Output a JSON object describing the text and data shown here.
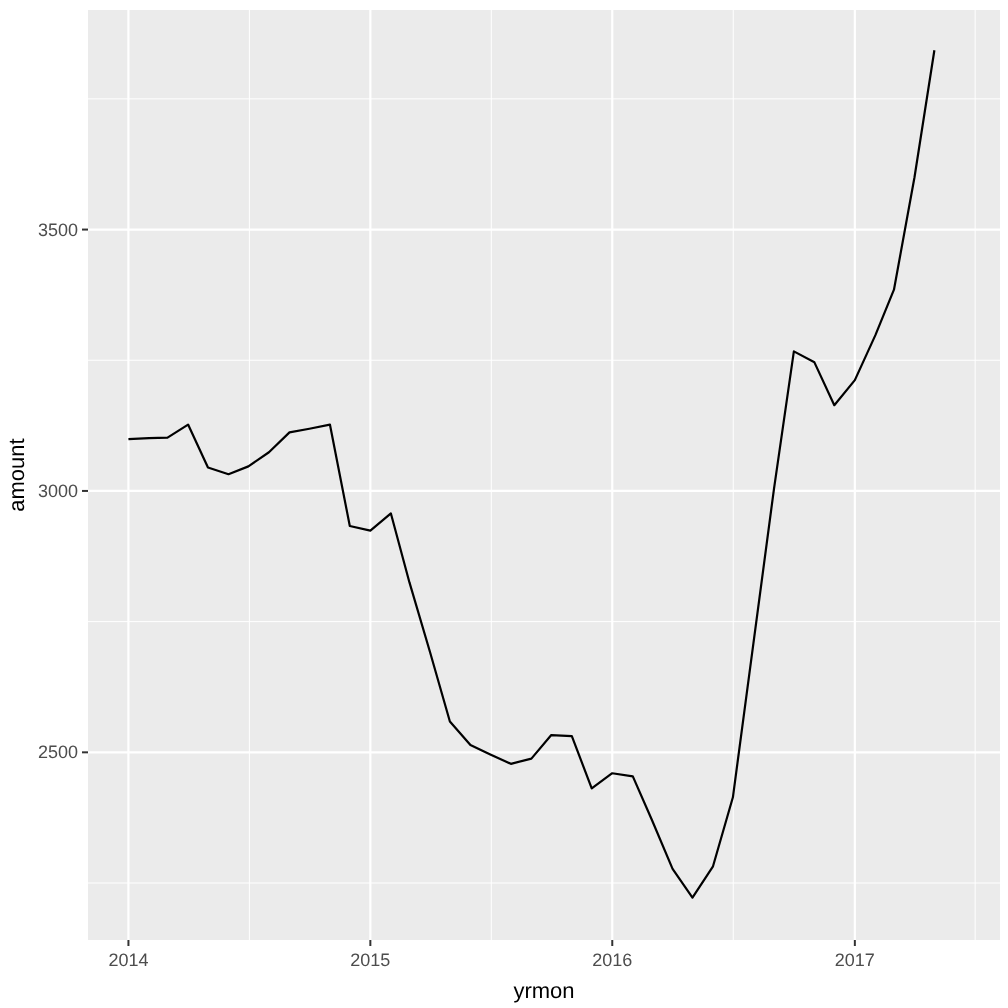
{
  "chart_data": {
    "type": "line",
    "xlabel": "yrmon",
    "ylabel": "amount",
    "x": [
      "2014-01",
      "2014-02",
      "2014-03",
      "2014-04",
      "2014-05",
      "2014-06",
      "2014-07",
      "2014-08",
      "2014-09",
      "2014-10",
      "2014-11",
      "2014-12",
      "2015-01",
      "2015-02",
      "2015-03",
      "2015-04",
      "2015-05",
      "2015-06",
      "2015-07",
      "2015-08",
      "2015-09",
      "2015-10",
      "2015-11",
      "2015-12",
      "2016-01",
      "2016-02",
      "2016-03",
      "2016-04",
      "2016-05",
      "2016-06",
      "2016-07",
      "2016-08",
      "2016-09",
      "2016-10",
      "2016-11",
      "2016-12",
      "2017-01",
      "2017-02",
      "2017-03",
      "2017-04",
      "2017-05"
    ],
    "series": [
      {
        "color": "#000000",
        "values": [
          3099,
          3101,
          3102,
          3127,
          3045,
          3032,
          3047,
          3074,
          3112,
          3119,
          3127,
          2933,
          2924,
          2957,
          2825,
          2692,
          2559,
          2514,
          2496,
          2478,
          2488,
          2533,
          2531,
          2431,
          2460,
          2454,
          2370,
          2277,
          2222,
          2282,
          2414,
          2709,
          3004,
          3267,
          3246,
          3164,
          3212,
          3298,
          3385,
          3600,
          3843
        ]
      }
    ],
    "xlim": [
      "2013-11-01",
      "2017-08-08"
    ],
    "xticks": [
      "2014",
      "2015",
      "2016",
      "2017"
    ],
    "ylim": [
      2141,
      3920
    ],
    "yticks": [
      2500,
      3000,
      3500
    ],
    "grid": true
  }
}
